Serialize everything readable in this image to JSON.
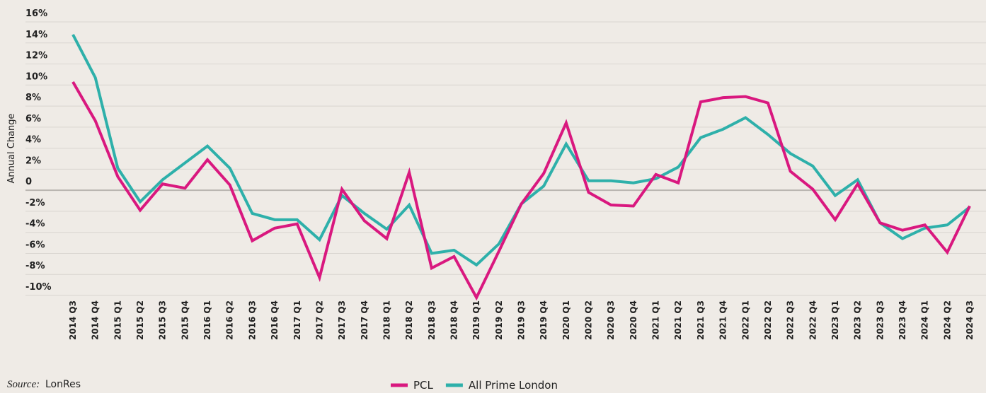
{
  "chart_data": {
    "type": "line",
    "y_label": "Annual Change",
    "source_label": "Source:",
    "source": "LonRes",
    "categories": [
      "2014 Q3",
      "2014 Q4",
      "2015 Q1",
      "2015 Q2",
      "2015 Q3",
      "2015 Q4",
      "2016 Q1",
      "2016 Q2",
      "2016 Q3",
      "2016 Q4",
      "2017 Q1",
      "2017 Q2",
      "2017 Q3",
      "2017 Q4",
      "2018 Q1",
      "2018 Q2",
      "2018 Q3",
      "2018 Q4",
      "2019 Q1",
      "2019 Q2",
      "2019 Q3",
      "2019 Q4",
      "2020 Q1",
      "2020 Q2",
      "2020 Q3",
      "2020 Q4",
      "2021 Q1",
      "2021 Q2",
      "2021 Q3",
      "2021 Q4",
      "2022 Q1",
      "2022 Q2",
      "2022 Q3",
      "2022 Q4",
      "2023 Q1",
      "2023 Q2",
      "2023 Q3",
      "2023 Q4",
      "2024 Q1",
      "2024 Q2",
      "2024 Q3"
    ],
    "series": [
      {
        "name": "PCL",
        "color": "#d9187f",
        "values": [
          10.3,
          6.6,
          1.3,
          -1.9,
          0.6,
          0.2,
          2.9,
          0.5,
          -4.8,
          -3.6,
          -3.2,
          -8.3,
          0.1,
          -2.9,
          -4.6,
          1.7,
          -7.4,
          -6.3,
          -10.2,
          -5.8,
          -1.3,
          1.6,
          6.4,
          -0.2,
          -1.4,
          -1.5,
          1.5,
          0.7,
          8.4,
          8.8,
          8.9,
          8.3,
          1.8,
          0.1,
          -2.8,
          0.6,
          -3.1,
          -3.8,
          -3.3,
          -5.9,
          -1.5
        ]
      },
      {
        "name": "All Prime London",
        "color": "#2eb0aa",
        "values": [
          14.8,
          10.7,
          2.1,
          -1.1,
          1.0,
          2.6,
          4.2,
          2.1,
          -2.2,
          -2.8,
          -2.8,
          -4.7,
          -0.5,
          -2.2,
          -3.7,
          -1.4,
          -6.0,
          -5.7,
          -7.1,
          -5.1,
          -1.3,
          0.4,
          4.4,
          0.9,
          0.9,
          0.7,
          1.1,
          2.2,
          5.0,
          5.8,
          6.9,
          5.3,
          3.5,
          2.3,
          -0.5,
          1.0,
          -3.1,
          -4.6,
          -3.6,
          -3.3,
          -1.6
        ]
      }
    ],
    "ylim": [
      -10,
      16
    ],
    "yticks": [
      {
        "value": -10,
        "label": "-10%"
      },
      {
        "value": -8,
        "label": "-8%"
      },
      {
        "value": -6,
        "label": "-6%"
      },
      {
        "value": -4,
        "label": "-4%"
      },
      {
        "value": -2,
        "label": "-2%"
      },
      0,
      {
        "value": 2,
        "label": "2%"
      },
      {
        "value": 4,
        "label": "4%"
      },
      {
        "value": 6,
        "label": "6%"
      },
      {
        "value": 8,
        "label": "8%"
      },
      {
        "value": 10,
        "label": "10%"
      },
      {
        "value": 12,
        "label": "12%"
      },
      {
        "value": 14,
        "label": "14%"
      },
      {
        "value": 16,
        "label": "16%"
      }
    ],
    "grid": true,
    "legend": "bottom"
  }
}
